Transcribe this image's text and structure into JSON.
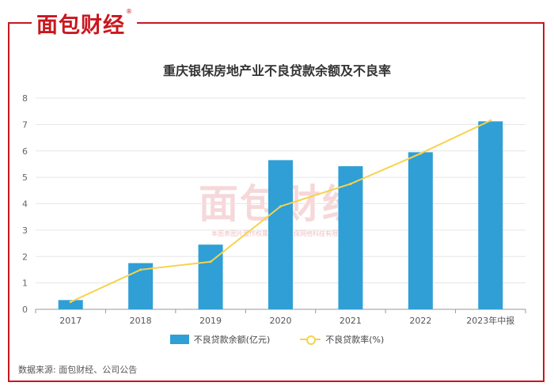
{
  "brand": {
    "logo_text": "面包财经",
    "logo_mark": "®"
  },
  "chart_data": {
    "type": "bar",
    "title": "重庆银保房地产业不良贷款余额及不良率",
    "categories": [
      "2017",
      "2018",
      "2019",
      "2020",
      "2021",
      "2022",
      "2023年中报"
    ],
    "series": [
      {
        "name": "不良贷款余额(亿元)",
        "type": "bar",
        "color": "#2f9fd6",
        "values": [
          0.35,
          1.75,
          2.45,
          5.65,
          5.42,
          5.95,
          7.12
        ]
      },
      {
        "name": "不良贷款率(%)",
        "type": "line",
        "color": "#f7d34a",
        "values": [
          0.28,
          1.5,
          1.8,
          3.9,
          4.75,
          5.9,
          7.15
        ]
      }
    ],
    "ylim": [
      0,
      8
    ],
    "yticks": [
      "0",
      "1",
      "2",
      "3",
      "4",
      "5",
      "6",
      "7",
      "8"
    ],
    "grid": true,
    "legend_position": "bottom"
  },
  "watermark": {
    "logo_text": "面包财经",
    "logo_mark": "®",
    "note": "本图表图片著作权属于上海优保网络科技有限公司"
  },
  "source": "数据来源: 面包财经、公司公告"
}
